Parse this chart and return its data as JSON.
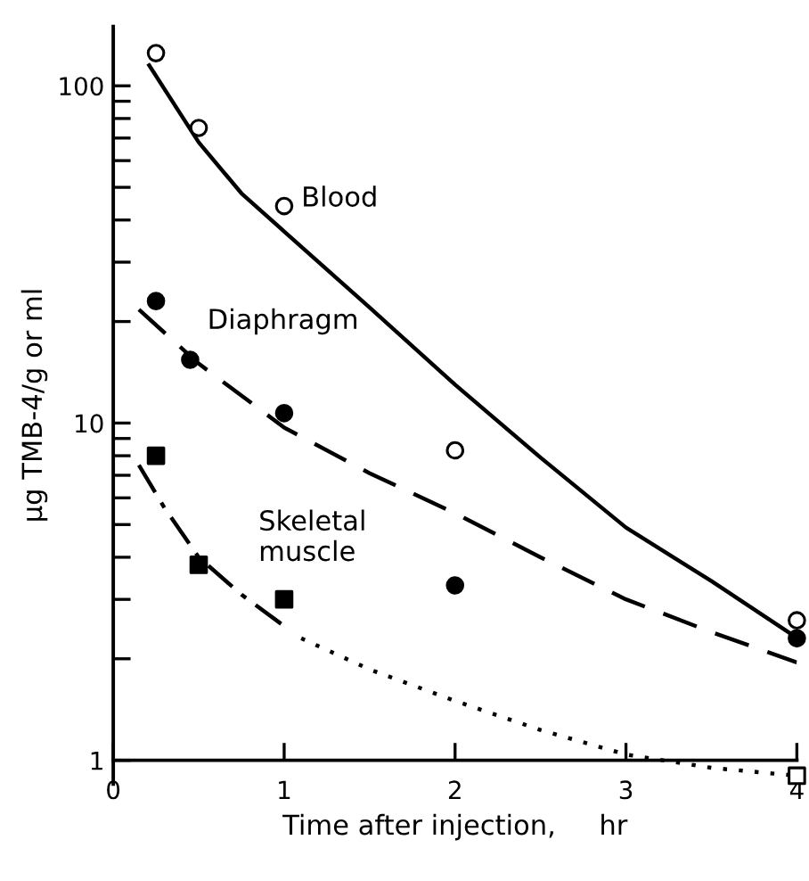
{
  "chart_data": {
    "type": "scatter",
    "xlabel": "Time after injection,     hr",
    "ylabel": "μg TMB-4/g or ml",
    "log": "y",
    "xlim": [
      0,
      4
    ],
    "xticks": [
      0,
      1,
      2,
      3,
      4
    ],
    "ylim": [
      0.85,
      150
    ],
    "yticks": [
      1,
      {
        "value": 2,
        "label": null
      },
      {
        "value": 3,
        "label": null
      },
      {
        "value": 4,
        "label": null
      },
      {
        "value": 5,
        "label": null
      },
      {
        "value": 6,
        "label": null
      },
      {
        "value": 7,
        "label": null
      },
      {
        "value": 8,
        "label": null
      },
      {
        "value": 9,
        "label": null
      },
      10,
      {
        "value": 20,
        "label": null
      },
      {
        "value": 30,
        "label": null
      },
      {
        "value": 40,
        "label": null
      },
      {
        "value": 50,
        "label": null
      },
      {
        "value": 60,
        "label": null
      },
      {
        "value": 70,
        "label": null
      },
      {
        "value": 80,
        "label": null
      },
      {
        "value": 90,
        "label": null
      },
      100
    ],
    "grid": false,
    "legend": false,
    "series": [
      {
        "name": "Blood",
        "marker": "circle",
        "color": "#ffffff",
        "x": [
          0.25,
          0.5,
          1,
          2,
          4
        ],
        "values": [
          125,
          75,
          44,
          8.3,
          2.6
        ]
      },
      {
        "name": "Diaphragm",
        "marker": "circle",
        "color": "#000000",
        "x": [
          0.25,
          0.45,
          1,
          2,
          4
        ],
        "values": [
          23,
          15.4,
          10.7,
          3.3,
          2.3
        ]
      },
      {
        "name": "Skeletal\nmuscle",
        "marker": "square",
        "color": "#000000",
        "x": [
          0.25,
          0.5,
          1
        ],
        "values": [
          8,
          3.8,
          3
        ]
      },
      {
        "marker": "square",
        "color": "#ffffff",
        "x": [
          4
        ],
        "values": [
          0.9
        ]
      },
      {
        "type": "line",
        "line_style": "solid",
        "color": "#000000",
        "x": [
          0.21,
          0.5,
          0.75,
          1,
          1.5,
          2,
          2.5,
          3,
          3.5,
          3.95
        ],
        "values": [
          115,
          68,
          48,
          37,
          22,
          13,
          7.9,
          4.9,
          3.4,
          2.4
        ]
      },
      {
        "type": "line",
        "line_style": "dashed",
        "color": "#000000",
        "x": [
          0.15,
          0.5,
          1,
          1.5,
          2,
          2.5,
          3,
          3.5,
          4
        ],
        "values": [
          21.7,
          15,
          9.7,
          7.1,
          5.4,
          4.0,
          3.0,
          2.4,
          1.95
        ]
      },
      {
        "type": "line",
        "line_style": "dashdot",
        "color": "#000000",
        "x": [
          0.15,
          0.3,
          0.5,
          0.75,
          1
        ],
        "values": [
          7.5,
          5.6,
          4.0,
          3.1,
          2.5
        ]
      },
      {
        "type": "line",
        "line_style": "dotted",
        "color": "#000000",
        "x": [
          1.1,
          1.5,
          2,
          2.5,
          3,
          3.5,
          4
        ],
        "values": [
          2.3,
          1.86,
          1.5,
          1.23,
          1.04,
          0.95,
          0.9
        ]
      }
    ]
  }
}
